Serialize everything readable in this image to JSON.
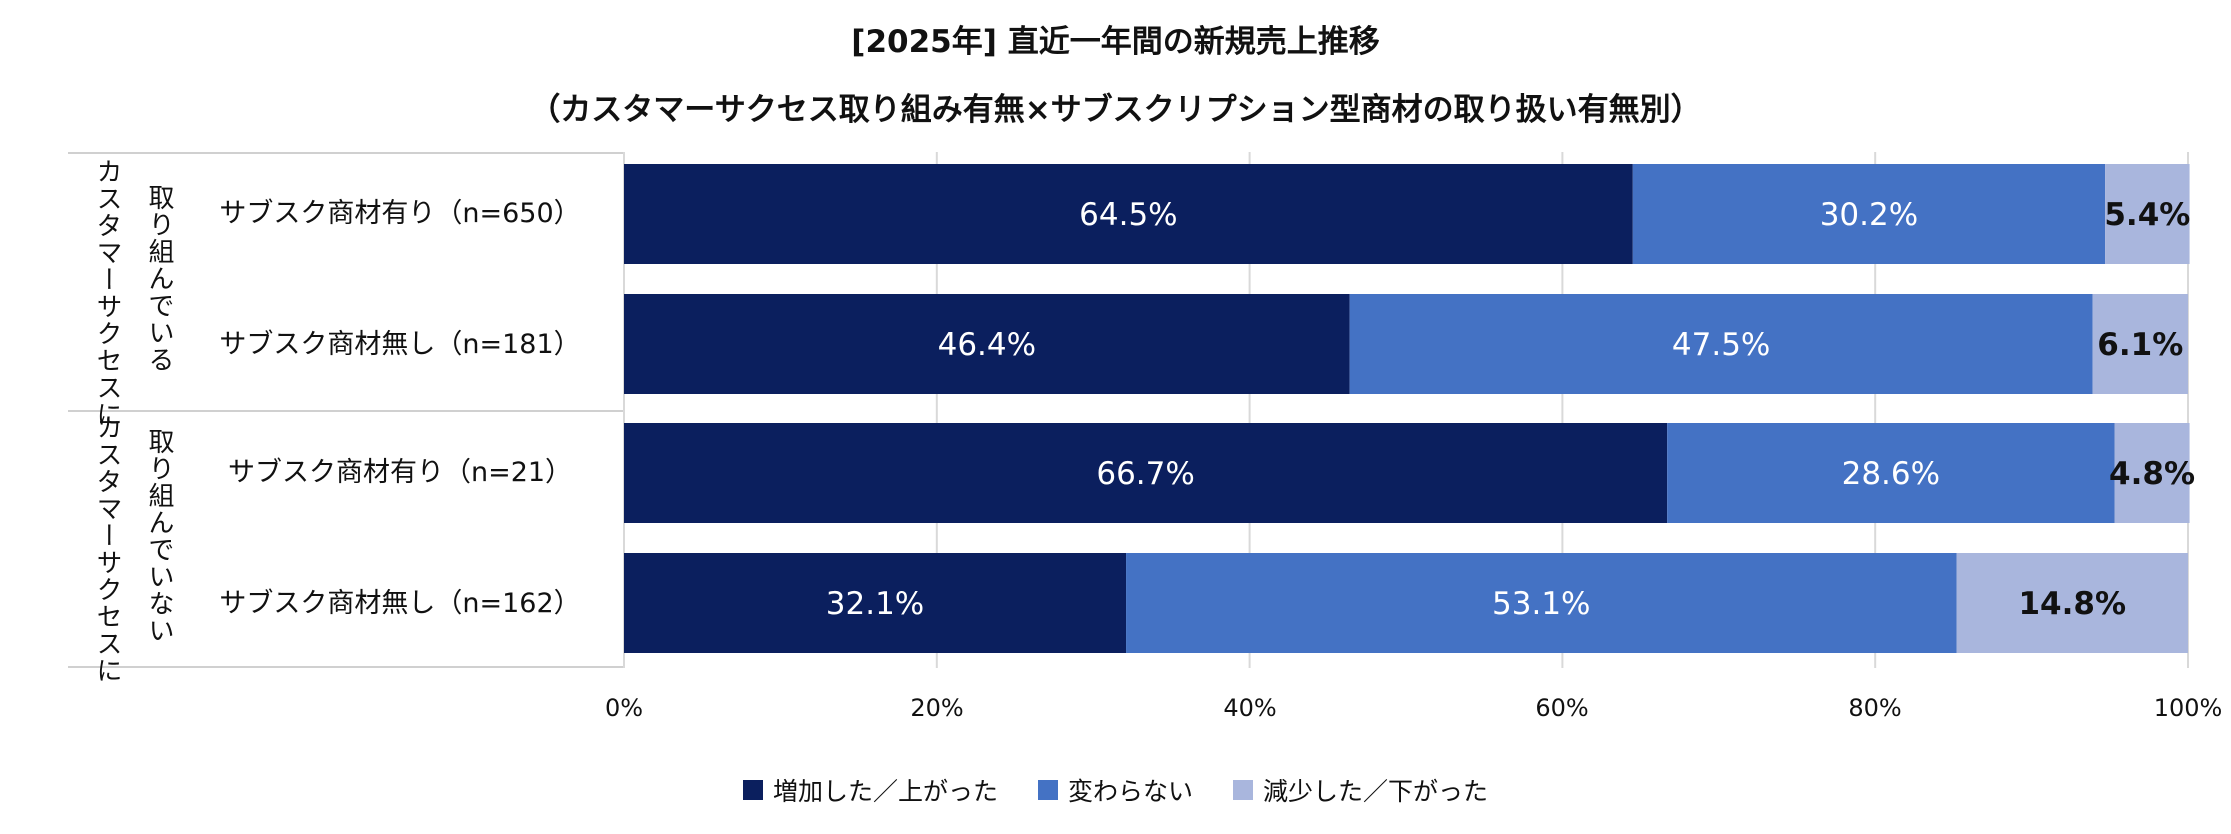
{
  "title_line1": "[2025年] 直近一年間の新規売上推移",
  "title_line2": "（カスタマーサクセス取り組み有無×サブスクリプション型商材の取り扱い有無別）",
  "colors": {
    "increase": "#0b1f5e",
    "same": "#4472c4",
    "decrease": "#a9b6dd",
    "grid": "#d9d9d9",
    "frame": "#d0d0d0"
  },
  "chart_data": {
    "type": "bar",
    "orientation": "horizontal",
    "stacked": true,
    "percent": true,
    "title": "[2025年] 直近一年間の新規売上推移",
    "subtitle": "（カスタマーサクセス取り組み有無×サブスクリプション型商材の取り扱い有無別）",
    "groups": [
      {
        "label": "カスタマーサクセスに取り組んでいる",
        "line1": "カスタマーサクセスに",
        "line2": "取り組んでいる"
      },
      {
        "label": "カスタマーサクセスに取り組んでいない",
        "line1": "カスタマーサクセスに",
        "line2": "取り組んでいない"
      }
    ],
    "categories": [
      "サブスク商材有り（n=650）",
      "サブスク商材無し（n=181）",
      "サブスク商材有り（n=21）",
      "サブスク商材無し（n=162）"
    ],
    "series": [
      {
        "name": "増加した／上がった",
        "values": [
          64.5,
          46.4,
          66.7,
          32.1
        ],
        "labels": [
          "64.5%",
          "46.4%",
          "66.7%",
          "32.1%"
        ]
      },
      {
        "name": "変わらない",
        "values": [
          30.2,
          47.5,
          28.6,
          53.1
        ],
        "labels": [
          "30.2%",
          "47.5%",
          "28.6%",
          "53.1%"
        ]
      },
      {
        "name": "減少した／下がった",
        "values": [
          5.4,
          6.1,
          4.8,
          14.8
        ],
        "labels": [
          "5.4%",
          "6.1%",
          "4.8%",
          "14.8%"
        ]
      }
    ],
    "xlim": [
      0,
      100
    ],
    "x_ticks": [
      "0%",
      "20%",
      "40%",
      "60%",
      "80%",
      "100%"
    ],
    "grid": true,
    "legend_position": "bottom"
  }
}
